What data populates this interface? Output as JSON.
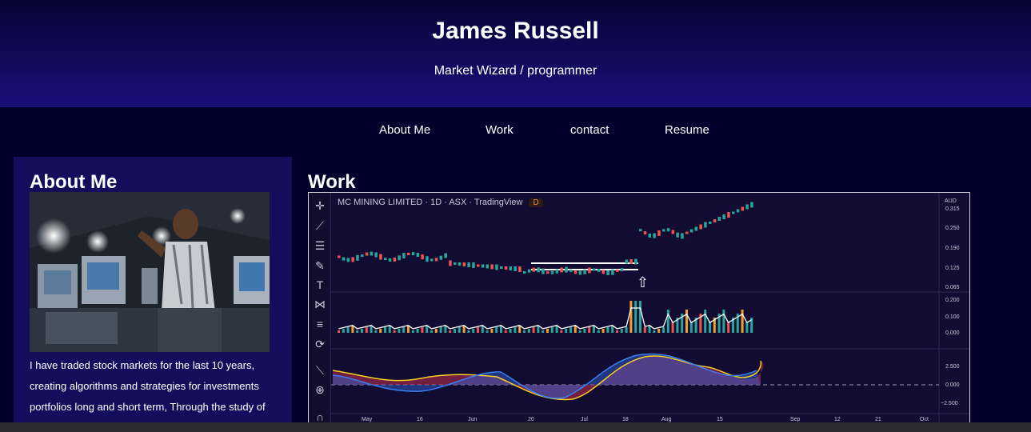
{
  "header": {
    "title": "James Russell",
    "subtitle": "Market Wizard / programmer"
  },
  "nav": {
    "items": [
      "About Me",
      "Work",
      "contact",
      "Resume"
    ]
  },
  "about": {
    "heading": "About Me",
    "text": "I have traded stock markets for the last 10 years, creating algorithms and strategies for investments portfolios long and short term, Through the study of"
  },
  "work": {
    "heading": "Work",
    "chart_title": "MC MINING LIMITED · 1D · ASX · TradingView",
    "badge": "D",
    "currency": "AUD",
    "price_ticks": [
      "0.315",
      "0.250",
      "0.190",
      "0.125",
      "0.065"
    ],
    "volume_ticks": [
      "0.200",
      "0.100",
      "0.000"
    ],
    "osc_ticks": [
      "2.500",
      "0.000",
      "−2.500"
    ],
    "x_ticks": [
      "May",
      "16",
      "Jun",
      "20",
      "Jul",
      "18",
      "Aug",
      "15",
      "Sep",
      "12",
      "21",
      "Oct"
    ]
  },
  "colors": {
    "up": "#26a69a",
    "down": "#ef5350",
    "header_bottom": "#1a0f7a",
    "panel": "#140d5c"
  }
}
